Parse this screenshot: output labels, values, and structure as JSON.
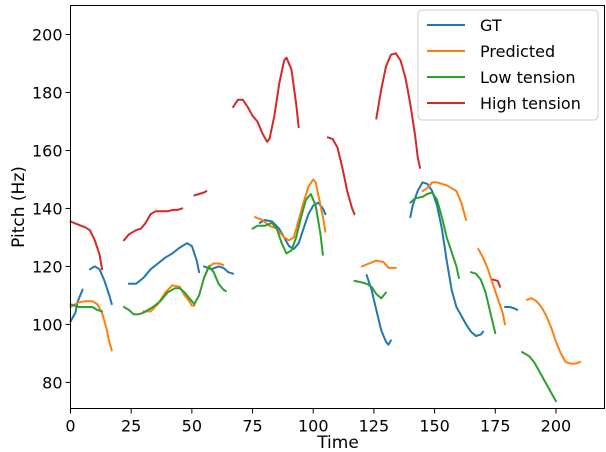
{
  "chart_data": {
    "type": "line",
    "xlabel": "Time",
    "ylabel": "Pitch (Hz)",
    "xlim": [
      0,
      220
    ],
    "ylim": [
      71,
      210
    ],
    "x_ticks": [
      0,
      25,
      50,
      75,
      100,
      125,
      150,
      175,
      200
    ],
    "y_ticks": [
      80,
      100,
      120,
      140,
      160,
      180,
      200
    ],
    "grid": false,
    "legend_position": "top-right",
    "series": [
      {
        "name": "GT",
        "color": "#1f77b4",
        "segments": [
          [
            [
              0,
              101
            ],
            [
              2,
              104
            ],
            [
              3,
              108
            ],
            [
              5,
              112
            ]
          ],
          [
            [
              8,
              119
            ],
            [
              10,
              120
            ],
            [
              12,
              119
            ],
            [
              14,
              115
            ],
            [
              16,
              110
            ],
            [
              17,
              107
            ]
          ],
          [
            [
              24,
              114
            ],
            [
              27,
              114
            ],
            [
              30,
              116
            ],
            [
              33,
              119
            ],
            [
              36,
              121
            ],
            [
              39,
              123
            ],
            [
              42,
              124.5
            ],
            [
              45,
              126.5
            ],
            [
              48,
              128
            ],
            [
              50,
              127
            ],
            [
              52,
              122
            ],
            [
              53,
              118
            ]
          ],
          [
            [
              55,
              120
            ],
            [
              58,
              119
            ],
            [
              61,
              120
            ],
            [
              63,
              119.5
            ],
            [
              65,
              118
            ],
            [
              67,
              117.5
            ]
          ],
          [
            [
              78,
              135
            ],
            [
              80,
              136
            ],
            [
              83,
              135.5
            ],
            [
              86,
              133
            ],
            [
              88,
              130
            ],
            [
              90,
              127
            ],
            [
              92,
              126
            ],
            [
              94,
              128
            ],
            [
              96,
              133
            ],
            [
              98,
              138
            ],
            [
              100,
              141
            ],
            [
              102,
              142
            ],
            [
              104,
              140
            ],
            [
              105,
              138
            ]
          ],
          [
            [
              122,
              117
            ],
            [
              124,
              112
            ],
            [
              126,
              105
            ],
            [
              128,
              98
            ],
            [
              130,
              94
            ],
            [
              131,
              93
            ],
            [
              132,
              94.5
            ]
          ],
          [
            [
              140,
              137
            ],
            [
              141,
              141
            ],
            [
              143,
              146
            ],
            [
              145,
              149
            ],
            [
              147,
              148.5
            ],
            [
              149,
              146
            ],
            [
              151,
              141
            ],
            [
              153,
              133
            ],
            [
              155,
              122
            ],
            [
              157,
              112
            ],
            [
              159,
              106
            ],
            [
              161,
              103
            ],
            [
              163,
              100
            ],
            [
              165,
              97.5
            ],
            [
              167,
              96
            ],
            [
              169,
              96.5
            ],
            [
              170,
              97.5
            ]
          ],
          [
            [
              179,
              106
            ],
            [
              181,
              106
            ],
            [
              183,
              105.5
            ],
            [
              184,
              105
            ]
          ]
        ]
      },
      {
        "name": "Predicted",
        "color": "#ff7f0e",
        "segments": [
          [
            [
              0,
              106
            ],
            [
              3,
              107.5
            ],
            [
              6,
              108
            ],
            [
              9,
              108
            ],
            [
              11,
              107
            ],
            [
              13,
              104
            ],
            [
              15,
              98
            ],
            [
              16,
              94
            ],
            [
              17,
              91
            ]
          ],
          [
            [
              30,
              104.5
            ],
            [
              33,
              104.5
            ],
            [
              36,
              107
            ],
            [
              39,
              111
            ],
            [
              42,
              113.5
            ],
            [
              45,
              113
            ],
            [
              47,
              110
            ],
            [
              49,
              108
            ],
            [
              50,
              106.5
            ],
            [
              51,
              106.5
            ]
          ],
          [
            [
              55,
              116
            ],
            [
              57,
              120
            ],
            [
              59,
              121
            ],
            [
              61,
              121
            ],
            [
              63,
              120.5
            ]
          ],
          [
            [
              76,
              137
            ],
            [
              79,
              136
            ],
            [
              82,
              134
            ],
            [
              85,
              133
            ],
            [
              88,
              130
            ],
            [
              90,
              129
            ],
            [
              92,
              130
            ],
            [
              94,
              136
            ],
            [
              96,
              142
            ],
            [
              98,
              147.5
            ],
            [
              100,
              150
            ],
            [
              101,
              149
            ],
            [
              102,
              145
            ],
            [
              104,
              137
            ],
            [
              105,
              132
            ]
          ],
          [
            [
              120,
              120
            ],
            [
              123,
              121
            ],
            [
              126,
              122
            ],
            [
              129,
              121.5
            ],
            [
              131,
              119.5
            ],
            [
              134,
              119.5
            ]
          ],
          [
            [
              145,
              146
            ],
            [
              147,
              147
            ],
            [
              149,
              149
            ],
            [
              151,
              149
            ],
            [
              153,
              148.5
            ],
            [
              155,
              148
            ],
            [
              157,
              147
            ],
            [
              159,
              146
            ],
            [
              161,
              142
            ],
            [
              163,
              136
            ]
          ],
          [
            [
              168,
              126
            ],
            [
              170,
              123
            ],
            [
              172,
              119
            ],
            [
              174,
              114
            ],
            [
              176,
              109
            ],
            [
              178,
              104
            ],
            [
              179,
              100
            ]
          ],
          [
            [
              188,
              108.5
            ],
            [
              190,
              109
            ],
            [
              192,
              108
            ],
            [
              194,
              106
            ],
            [
              196,
              103
            ],
            [
              198,
              99
            ],
            [
              200,
              94
            ],
            [
              202,
              90
            ],
            [
              204,
              87
            ],
            [
              206,
              86.5
            ],
            [
              208,
              86.5
            ],
            [
              210,
              87
            ]
          ]
        ]
      },
      {
        "name": "Low tension",
        "color": "#2ca02c",
        "segments": [
          [
            [
              0,
              107
            ],
            [
              3,
              106
            ],
            [
              6,
              106
            ],
            [
              9,
              106
            ],
            [
              11,
              105
            ],
            [
              13,
              104.5
            ]
          ],
          [
            [
              22,
              106
            ],
            [
              24,
              105
            ],
            [
              26,
              103.5
            ],
            [
              28,
              103.5
            ],
            [
              30,
              104
            ],
            [
              32,
              105
            ],
            [
              34,
              106
            ],
            [
              37,
              108
            ],
            [
              40,
              111
            ],
            [
              43,
              112.5
            ],
            [
              45,
              112.5
            ],
            [
              47,
              111
            ],
            [
              49,
              109
            ],
            [
              51,
              107
            ],
            [
              53,
              110
            ],
            [
              55,
              116
            ],
            [
              57,
              120
            ],
            [
              59,
              118
            ],
            [
              61,
              114
            ],
            [
              63,
              112
            ],
            [
              64,
              111.5
            ]
          ],
          [
            [
              75,
              133
            ],
            [
              77,
              134
            ],
            [
              80,
              134
            ],
            [
              83,
              135
            ],
            [
              85,
              133
            ],
            [
              87,
              128
            ],
            [
              89,
              124.5
            ],
            [
              91,
              125.5
            ],
            [
              93,
              130
            ],
            [
              95,
              137
            ],
            [
              97,
              143
            ],
            [
              99,
              145
            ],
            [
              101,
              141
            ],
            [
              103,
              131
            ],
            [
              104,
              124
            ]
          ],
          [
            [
              117,
              115
            ],
            [
              120,
              114.5
            ],
            [
              122,
              114
            ],
            [
              124,
              113
            ],
            [
              126,
              110.5
            ],
            [
              128,
              109
            ],
            [
              130,
              111
            ]
          ],
          [
            [
              140,
              142
            ],
            [
              142,
              143.5
            ],
            [
              145,
              144
            ],
            [
              147,
              145
            ],
            [
              149,
              145.5
            ],
            [
              151,
              143
            ],
            [
              153,
              137
            ],
            [
              155,
              130
            ],
            [
              157,
              125
            ],
            [
              159,
              120
            ],
            [
              160,
              116
            ]
          ],
          [
            [
              165,
              118
            ],
            [
              167,
              117.5
            ],
            [
              169,
              115.5
            ],
            [
              171,
              111
            ],
            [
              173,
              104
            ],
            [
              175,
              97
            ]
          ],
          [
            [
              186,
              90.5
            ],
            [
              189,
              89
            ],
            [
              191,
              87
            ],
            [
              193,
              84
            ],
            [
              195,
              81
            ],
            [
              197,
              78
            ],
            [
              199,
              75
            ],
            [
              200,
              73.5
            ]
          ]
        ]
      },
      {
        "name": "High tension",
        "color": "#d62728",
        "segments": [
          [
            [
              0,
              135.5
            ],
            [
              3,
              134.5
            ],
            [
              6,
              133.5
            ],
            [
              8,
              132.5
            ],
            [
              10,
              129
            ],
            [
              12,
              124
            ],
            [
              13,
              119
            ]
          ],
          [
            [
              22,
              129
            ],
            [
              24,
              131
            ],
            [
              27,
              132.5
            ],
            [
              29,
              133
            ],
            [
              31,
              135
            ],
            [
              33,
              138
            ],
            [
              35,
              139
            ],
            [
              37,
              139
            ],
            [
              40,
              139
            ],
            [
              42,
              139.5
            ],
            [
              44,
              139.5
            ],
            [
              46,
              140
            ]
          ],
          [
            [
              51,
              144.5
            ],
            [
              53,
              145
            ],
            [
              55,
              145.5
            ],
            [
              56,
              146
            ]
          ],
          [
            [
              67,
              175
            ],
            [
              69,
              177.5
            ],
            [
              71,
              177.5
            ],
            [
              73,
              175
            ],
            [
              75,
              172
            ],
            [
              77,
              170
            ],
            [
              79,
              166
            ],
            [
              81,
              163
            ],
            [
              82,
              164
            ],
            [
              84,
              172
            ],
            [
              86,
              183
            ],
            [
              88,
              191
            ],
            [
              89,
              192
            ],
            [
              91,
              188
            ],
            [
              93,
              176
            ],
            [
              94,
              168
            ]
          ],
          [
            [
              106,
              164.5
            ],
            [
              108,
              164
            ],
            [
              110,
              161
            ],
            [
              112,
              154
            ],
            [
              114,
              146
            ],
            [
              116,
              140
            ],
            [
              117,
              138
            ]
          ],
          [
            [
              126,
              171
            ],
            [
              128,
              181
            ],
            [
              130,
              189
            ],
            [
              132,
              193
            ],
            [
              134,
              193.5
            ],
            [
              136,
              191
            ],
            [
              138,
              185
            ],
            [
              140,
              176
            ],
            [
              142,
              165
            ],
            [
              143,
              158
            ],
            [
              144,
              154
            ]
          ],
          [
            [
              174,
              115.5
            ],
            [
              176,
              115
            ],
            [
              177,
              113
            ]
          ]
        ]
      }
    ]
  }
}
